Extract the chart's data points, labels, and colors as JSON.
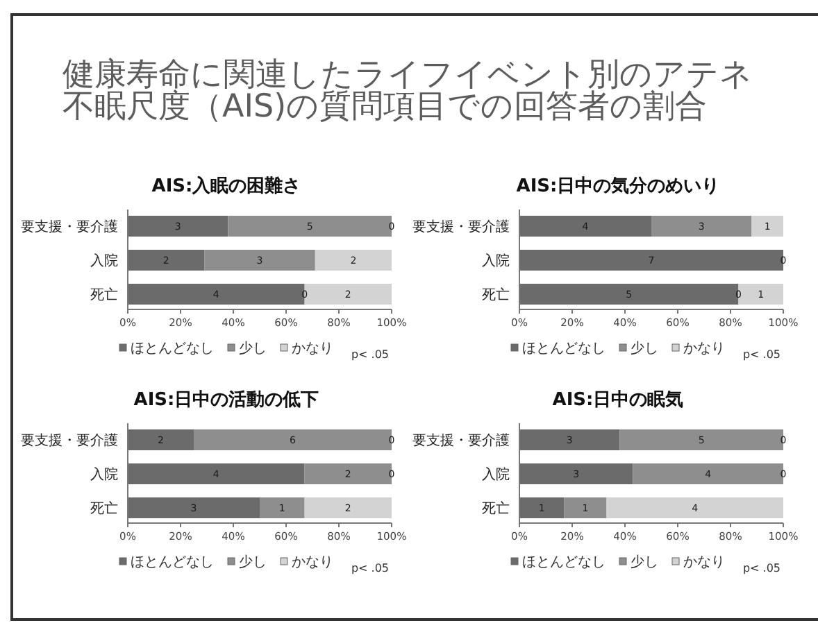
{
  "chart_data": [
    {
      "type": "other",
      "title": "健康寿命に関連したライフイベント別のアテネ不眠尺度（AIS)の質問項目での回答者の割合"
    },
    {
      "type": "bar",
      "orientation": "horizontal",
      "stacked": true,
      "title": "AIS:入眠の困難さ",
      "categories": [
        "要支援・要介護",
        "入院",
        "死亡"
      ],
      "xlim": [
        0,
        100
      ],
      "xticks": [
        {
          "value": 0,
          "label": "0%"
        },
        {
          "value": 20,
          "label": "20%"
        },
        {
          "value": 40,
          "label": "40%"
        },
        {
          "value": 60,
          "label": "60%"
        },
        {
          "value": 80,
          "label": "80%"
        },
        {
          "value": 100,
          "label": "100%"
        }
      ],
      "legend": "bottom",
      "annotations": [
        {
          "text": "3",
          "x": 19,
          "y": "要支援・要介護"
        },
        {
          "text": "5",
          "x": 69,
          "y": "要支援・要介護"
        },
        {
          "text": "0",
          "x": 100,
          "y": "要支援・要介護"
        },
        {
          "text": "2",
          "x": 14.5,
          "y": "入院"
        },
        {
          "text": "3",
          "x": 50,
          "y": "入院"
        },
        {
          "text": "2",
          "x": 85.5,
          "y": "入院"
        },
        {
          "text": "4",
          "x": 33.5,
          "y": "死亡"
        },
        {
          "text": "0",
          "x": 67,
          "y": "死亡"
        },
        {
          "text": "2",
          "x": 83.5,
          "y": "死亡"
        },
        "p< .05"
      ],
      "series": [
        {
          "name": "ほとんどなし",
          "color": "#6b6b6b",
          "values": [
            38,
            29,
            67
          ]
        },
        {
          "name": "少し",
          "color": "#8e8e8e",
          "values": [
            62,
            42,
            0
          ]
        },
        {
          "name": "かなり",
          "color": "#d3d3d3",
          "values": [
            0,
            29,
            33
          ]
        }
      ]
    },
    {
      "type": "bar",
      "orientation": "horizontal",
      "stacked": true,
      "title": "AIS:日中の気分のめいり",
      "categories": [
        "要支援・要介護",
        "入院",
        "死亡"
      ],
      "xlim": [
        0,
        100
      ],
      "xticks": [
        {
          "value": 0,
          "label": "0%"
        },
        {
          "value": 20,
          "label": "20%"
        },
        {
          "value": 40,
          "label": "40%"
        },
        {
          "value": 60,
          "label": "60%"
        },
        {
          "value": 80,
          "label": "80%"
        },
        {
          "value": 100,
          "label": "100%"
        }
      ],
      "legend": "bottom",
      "annotations": [
        {
          "text": "4",
          "x": 25,
          "y": "要支援・要介護"
        },
        {
          "text": "3",
          "x": 69,
          "y": "要支援・要介護"
        },
        {
          "text": "1",
          "x": 94,
          "y": "要支援・要介護"
        },
        {
          "text": "7",
          "x": 50,
          "y": "入院"
        },
        {
          "text": "0",
          "x": 100,
          "y": "入院"
        },
        {
          "text": "5",
          "x": 41.5,
          "y": "死亡"
        },
        {
          "text": "0",
          "x": 83,
          "y": "死亡"
        },
        {
          "text": "1",
          "x": 91.5,
          "y": "死亡"
        },
        "p< .05"
      ],
      "series": [
        {
          "name": "ほとんどなし",
          "color": "#6b6b6b",
          "values": [
            50,
            100,
            83
          ]
        },
        {
          "name": "少し",
          "color": "#8e8e8e",
          "values": [
            38,
            0,
            0
          ]
        },
        {
          "name": "かなり",
          "color": "#d3d3d3",
          "values": [
            12,
            0,
            17
          ]
        }
      ]
    },
    {
      "type": "bar",
      "orientation": "horizontal",
      "stacked": true,
      "title": "AIS:日中の活動の低下",
      "categories": [
        "要支援・要介護",
        "入院",
        "死亡"
      ],
      "xlim": [
        0,
        100
      ],
      "xticks": [
        {
          "value": 0,
          "label": "0%"
        },
        {
          "value": 20,
          "label": "20%"
        },
        {
          "value": 40,
          "label": "40%"
        },
        {
          "value": 60,
          "label": "60%"
        },
        {
          "value": 80,
          "label": "80%"
        },
        {
          "value": 100,
          "label": "100%"
        }
      ],
      "legend": "bottom",
      "annotations": [
        {
          "text": "2",
          "x": 12.5,
          "y": "要支援・要介護"
        },
        {
          "text": "6",
          "x": 62.5,
          "y": "要支援・要介護"
        },
        {
          "text": "0",
          "x": 100,
          "y": "要支援・要介護"
        },
        {
          "text": "4",
          "x": 33.5,
          "y": "入院"
        },
        {
          "text": "2",
          "x": 83.5,
          "y": "入院"
        },
        {
          "text": "0",
          "x": 100,
          "y": "入院"
        },
        {
          "text": "3",
          "x": 25,
          "y": "死亡"
        },
        {
          "text": "1",
          "x": 58.5,
          "y": "死亡"
        },
        {
          "text": "2",
          "x": 83.5,
          "y": "死亡"
        },
        "p< .05"
      ],
      "series": [
        {
          "name": "ほとんどなし",
          "color": "#6b6b6b",
          "values": [
            25,
            67,
            50
          ]
        },
        {
          "name": "少し",
          "color": "#8e8e8e",
          "values": [
            75,
            33,
            17
          ]
        },
        {
          "name": "かなり",
          "color": "#d3d3d3",
          "values": [
            0,
            0,
            33
          ]
        }
      ]
    },
    {
      "type": "bar",
      "orientation": "horizontal",
      "stacked": true,
      "title": "AIS:日中の眠気",
      "categories": [
        "要支援・要介護",
        "入院",
        "死亡"
      ],
      "xlim": [
        0,
        100
      ],
      "xticks": [
        {
          "value": 0,
          "label": "0%"
        },
        {
          "value": 20,
          "label": "20%"
        },
        {
          "value": 40,
          "label": "40%"
        },
        {
          "value": 60,
          "label": "60%"
        },
        {
          "value": 80,
          "label": "80%"
        },
        {
          "value": 100,
          "label": "100%"
        }
      ],
      "legend": "bottom",
      "annotations": [
        {
          "text": "3",
          "x": 19,
          "y": "要支援・要介護"
        },
        {
          "text": "5",
          "x": 69,
          "y": "要支援・要介護"
        },
        {
          "text": "0",
          "x": 100,
          "y": "要支援・要介護"
        },
        {
          "text": "3",
          "x": 21.5,
          "y": "入院"
        },
        {
          "text": "4",
          "x": 71.5,
          "y": "入院"
        },
        {
          "text": "0",
          "x": 100,
          "y": "入院"
        },
        {
          "text": "1",
          "x": 8.5,
          "y": "死亡"
        },
        {
          "text": "1",
          "x": 25,
          "y": "死亡"
        },
        {
          "text": "4",
          "x": 66.5,
          "y": "死亡"
        },
        "p< .05"
      ],
      "series": [
        {
          "name": "ほとんどなし",
          "color": "#6b6b6b",
          "values": [
            38,
            43,
            17
          ]
        },
        {
          "name": "少し",
          "color": "#8e8e8e",
          "values": [
            62,
            57,
            16
          ]
        },
        {
          "name": "かなり",
          "color": "#d3d3d3",
          "values": [
            0,
            0,
            67
          ]
        }
      ]
    }
  ]
}
